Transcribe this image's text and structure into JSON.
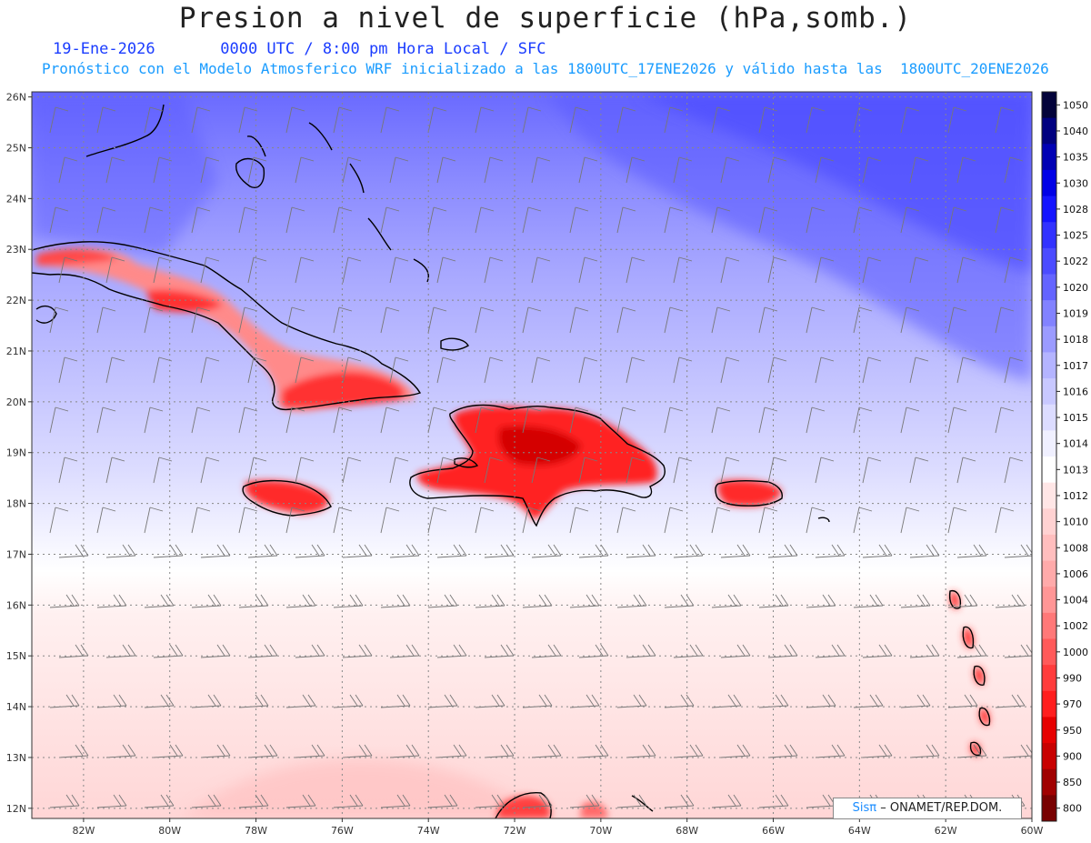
{
  "header": {
    "title": "Presion a nivel de superficie (hPa,somb.)",
    "date": "19-Ene-2026",
    "time_info": "0000 UTC / 8:00 pm Hora Local / SFC",
    "forecast_info": "Pronóstico con el Modelo Atmosferico WRF inicializado a las 1800UTC_17ENE2026 y válido hasta las  1800UTC_20ENE2026"
  },
  "map": {
    "lon_range": [
      -83.2,
      -60
    ],
    "lat_range": [
      11.8,
      26.1
    ],
    "x_ticks": [
      "82W",
      "80W",
      "78W",
      "76W",
      "74W",
      "72W",
      "70W",
      "68W",
      "66W",
      "64W",
      "62W",
      "60W"
    ],
    "x_tick_values": [
      -82,
      -80,
      -78,
      -76,
      -74,
      -72,
      -70,
      -68,
      -66,
      -64,
      -62,
      -60
    ],
    "y_ticks": [
      "12N",
      "13N",
      "14N",
      "15N",
      "16N",
      "17N",
      "18N",
      "19N",
      "20N",
      "21N",
      "22N",
      "23N",
      "24N",
      "25N",
      "26N"
    ],
    "y_tick_values": [
      12,
      13,
      14,
      15,
      16,
      17,
      18,
      19,
      20,
      21,
      22,
      23,
      24,
      25,
      26
    ],
    "gridlines": "dotted"
  },
  "colorbar": {
    "levels": [
      "1050",
      "1040",
      "1035",
      "1030",
      "1028",
      "1025",
      "1022",
      "1020",
      "1019",
      "1018",
      "1017",
      "1016",
      "1015",
      "1014",
      "1013",
      "1012",
      "1010",
      "1008",
      "1006",
      "1004",
      "1002",
      "1000",
      "990",
      "970",
      "950",
      "900",
      "850",
      "800"
    ],
    "colors": [
      "#03033a",
      "#000080",
      "#0000b4",
      "#0000e6",
      "#1414ff",
      "#3232ff",
      "#4b4bff",
      "#6464ff",
      "#8282ff",
      "#9b9bff",
      "#b4b4ff",
      "#c8c8ff",
      "#dcdcff",
      "#f0f0ff",
      "#ffffff",
      "#ffe6e6",
      "#ffd2d2",
      "#ffbebe",
      "#ffaaaa",
      "#ff9696",
      "#ff7878",
      "#ff5a5a",
      "#ff3c3c",
      "#ff1e1e",
      "#e60000",
      "#c80000",
      "#a00000",
      "#780000"
    ]
  },
  "credit": {
    "brand": "Sisπ",
    "text": "– ONAMET/REP.DOM."
  }
}
